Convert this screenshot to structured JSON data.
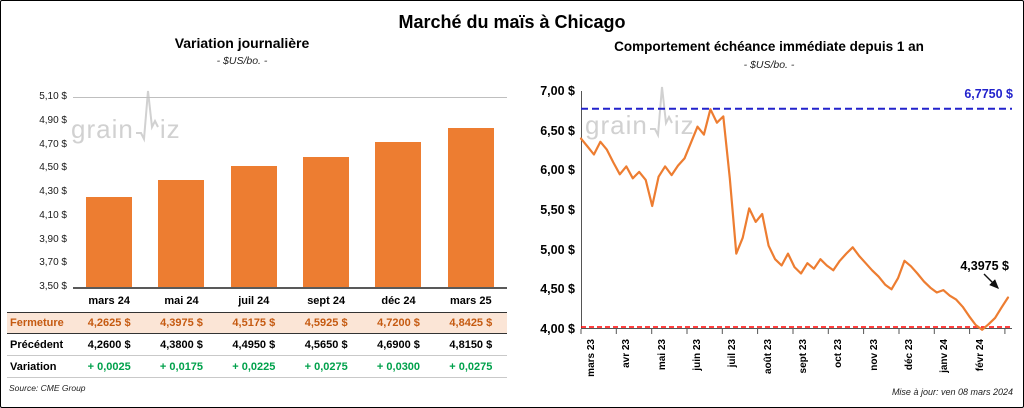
{
  "header": {
    "title": "Marché du maïs à Chicago"
  },
  "footer": {
    "source": "Source: CME Group",
    "updated": "Mise à jour: ven 08 mars 2024"
  },
  "watermark": {
    "text_left": "grain",
    "text_right": "iz",
    "color": "#c9c9c9"
  },
  "table": {
    "rows": [
      {
        "name": "fermeture",
        "label": "Fermeture",
        "values": [
          "4,2625  $",
          "4,3975  $",
          "4,5175  $",
          "4,5925  $",
          "4,7200  $",
          "4,8425  $"
        ]
      },
      {
        "name": "precedent",
        "label": "Précédent",
        "values": [
          "4,2600  $",
          "4,3800  $",
          "4,4950  $",
          "4,5650  $",
          "4,6900  $",
          "4,8150  $"
        ]
      },
      {
        "name": "variation",
        "label": "Variation",
        "values": [
          "+ 0,0025",
          "+ 0,0175",
          "+ 0,0225",
          "+ 0,0275",
          "+ 0,0300",
          "+ 0,0275"
        ]
      }
    ]
  },
  "chart_data": [
    {
      "type": "bar",
      "title": "Variation  journalière",
      "subtitle": "- $US/bo. -",
      "categories": [
        "mars 24",
        "mai 24",
        "juil 24",
        "sept 24",
        "déc 24",
        "mars 25"
      ],
      "values": [
        4.2625,
        4.3975,
        4.5175,
        4.5925,
        4.72,
        4.8425
      ],
      "ylim": [
        3.5,
        5.1
      ],
      "ytick_step": 0.2,
      "y_ticks": [
        "5,10 $",
        "4,90 $",
        "4,70 $",
        "4,50 $",
        "4,30 $",
        "4,10 $",
        "3,90 $",
        "3,70 $",
        "3,50 $"
      ],
      "bar_color": "#ED7D31",
      "grid": "top-line-only",
      "legend": "none"
    },
    {
      "type": "line",
      "title": "Comportement  échéance  immédiate  depuis 1 an",
      "subtitle": "- $US/bo. -",
      "x_labels": [
        "mars 23",
        "avr 23",
        "mai 23",
        "juin 23",
        "juil 23",
        "août 23",
        "sept 23",
        "oct 23",
        "nov 23",
        "déc 23",
        "janv 24",
        "févr 24"
      ],
      "months_span": 12.2,
      "ylim": [
        4.0,
        7.0
      ],
      "ytick_step": 0.5,
      "y_ticks": [
        "7,00 $",
        "6,50 $",
        "6,00 $",
        "5,50 $",
        "5,00 $",
        "4,50 $",
        "4,00 $"
      ],
      "line_color": "#ED7D31",
      "legend": "none",
      "reference_lines": [
        {
          "name": "high",
          "value": 6.775,
          "label": "6,7750 $",
          "color": "#2222CC",
          "style": "dashed"
        },
        {
          "name": "low",
          "value": 4.0,
          "label": "",
          "color": "#FF0000",
          "style": "dashed"
        }
      ],
      "last_point_label": "4,3975 $",
      "last_value": 4.3975,
      "values": [
        6.4,
        6.3,
        6.2,
        6.36,
        6.26,
        6.1,
        5.95,
        6.05,
        5.9,
        5.98,
        5.88,
        5.55,
        5.92,
        6.05,
        5.94,
        6.06,
        6.15,
        6.35,
        6.55,
        6.45,
        6.77,
        6.6,
        6.68,
        5.9,
        4.95,
        5.15,
        5.52,
        5.35,
        5.45,
        5.05,
        4.88,
        4.8,
        4.95,
        4.78,
        4.7,
        4.83,
        4.76,
        4.88,
        4.8,
        4.74,
        4.86,
        4.95,
        5.03,
        4.92,
        4.83,
        4.74,
        4.66,
        4.56,
        4.5,
        4.64,
        4.86,
        4.79,
        4.7,
        4.6,
        4.52,
        4.46,
        4.49,
        4.42,
        4.37,
        4.28,
        4.16,
        4.05,
        3.99,
        4.06,
        4.14,
        4.27,
        4.3975
      ]
    }
  ]
}
